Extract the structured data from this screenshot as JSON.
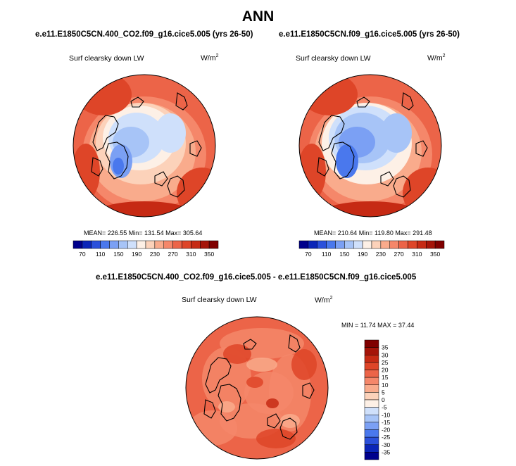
{
  "page": {
    "title": "ANN"
  },
  "colors": {
    "scale": [
      "#00008c",
      "#0b25b8",
      "#2b50db",
      "#4a78ed",
      "#7ba0f4",
      "#a7c4f7",
      "#cfe0fb",
      "#fdf0e6",
      "#fcd2ba",
      "#f9ab8c",
      "#f5876a",
      "#ec6448",
      "#de4528",
      "#c62a14",
      "#a51409",
      "#800000"
    ],
    "coastline": "#000000",
    "border": "#000000"
  },
  "chart_data": [
    {
      "type": "heatmap",
      "projection": "north-polar-stereographic",
      "title": "e.e11.E1850C5CN.400_CO2.f09_g16.cice5.005 (yrs 26-50)",
      "variable": "Surf clearsky down LW",
      "units_base": "W/m",
      "units_exp": "2",
      "stats": {
        "mean": 226.55,
        "min": 131.54,
        "max": 305.64
      },
      "stats_text": "MEAN= 226.55  Min= 131.54  Max= 305.64",
      "colorbar": {
        "orientation": "horizontal",
        "levels": [
          70,
          90,
          110,
          130,
          150,
          170,
          190,
          210,
          230,
          250,
          270,
          290,
          310,
          330,
          350
        ],
        "tick_labels": [
          "70",
          "110",
          "150",
          "190",
          "230",
          "270",
          "310",
          "350"
        ]
      }
    },
    {
      "type": "heatmap",
      "projection": "north-polar-stereographic",
      "title": "e.e11.E1850C5CN.f09_g16.cice5.005 (yrs 26-50)",
      "variable": "Surf clearsky down LW",
      "units_base": "W/m",
      "units_exp": "2",
      "stats": {
        "mean": 210.64,
        "min": 119.8,
        "max": 291.48
      },
      "stats_text": "MEAN= 210.64  Min= 119.80  Max= 291.48",
      "colorbar": {
        "orientation": "horizontal",
        "levels": [
          70,
          90,
          110,
          130,
          150,
          170,
          190,
          210,
          230,
          250,
          270,
          290,
          310,
          330,
          350
        ],
        "tick_labels": [
          "70",
          "110",
          "150",
          "190",
          "230",
          "270",
          "310",
          "350"
        ]
      }
    },
    {
      "type": "heatmap",
      "projection": "north-polar-stereographic",
      "title": "e.e11.E1850C5CN.400_CO2.f09_g16.cice5.005 - e.e11.E1850C5CN.f09_g16.cice5.005",
      "variable": "Surf clearsky down LW",
      "units_base": "W/m",
      "units_exp": "2",
      "stats": {
        "min": 11.74,
        "max": 37.44
      },
      "stats_text": "MIN = 11.74 MAX = 37.44",
      "colorbar": {
        "orientation": "vertical",
        "levels": [
          -35,
          -30,
          -25,
          -20,
          -15,
          -10,
          -5,
          0,
          5,
          10,
          15,
          20,
          25,
          30,
          35
        ],
        "tick_labels": [
          "35",
          "30",
          "25",
          "20",
          "15",
          "10",
          "5",
          "0",
          "-5",
          "-10",
          "-15",
          "-20",
          "-25",
          "-30",
          "-35"
        ]
      }
    }
  ]
}
